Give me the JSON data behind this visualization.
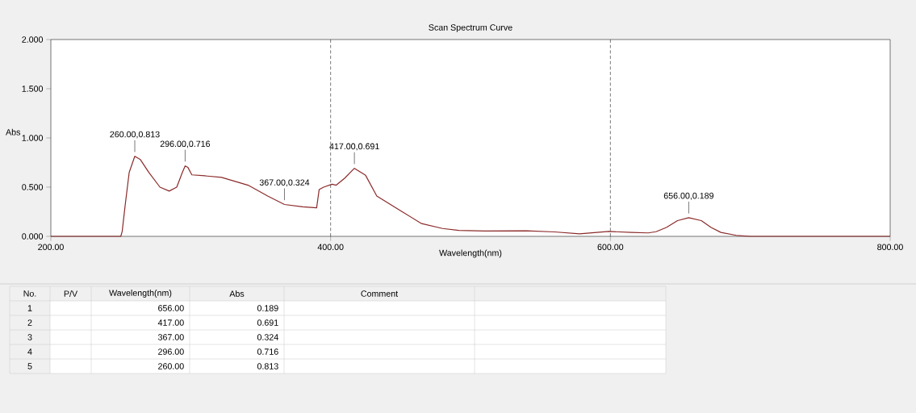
{
  "chart_data": {
    "type": "line",
    "title": "Scan Spectrum Curve",
    "xlabel": "Wavelength(nm)",
    "ylabel": "Abs",
    "x": [
      200,
      250,
      251,
      253,
      256,
      260,
      264,
      270,
      278,
      284.6,
      290,
      294,
      296,
      298,
      300.8,
      310,
      322,
      341,
      355,
      367,
      380,
      390,
      391.8,
      395,
      401,
      404,
      410,
      417,
      425,
      433,
      450,
      465,
      480,
      491.6,
      510,
      540,
      560,
      578,
      599,
      615,
      627,
      632.6,
      640,
      648,
      656,
      665,
      672,
      679,
      690,
      700,
      750,
      800
    ],
    "values": [
      0.0,
      0.0,
      0.05,
      0.3,
      0.65,
      0.813,
      0.78,
      0.65,
      0.5,
      0.46,
      0.5,
      0.65,
      0.716,
      0.7,
      0.625,
      0.615,
      0.6,
      0.52,
      0.41,
      0.324,
      0.3,
      0.29,
      0.475,
      0.5,
      0.53,
      0.52,
      0.59,
      0.691,
      0.62,
      0.41,
      0.26,
      0.13,
      0.08,
      0.06,
      0.055,
      0.057,
      0.045,
      0.025,
      0.05,
      0.04,
      0.035,
      0.047,
      0.09,
      0.16,
      0.189,
      0.16,
      0.09,
      0.04,
      0.01,
      0.0,
      0.0,
      0.0
    ],
    "color": "#8b2a2a",
    "line_style": "solid",
    "marker": "none",
    "grid": false,
    "xlim": [
      200,
      800
    ],
    "ylim": [
      0,
      2
    ],
    "xticks": [
      {
        "value": 200,
        "label": "200.00"
      },
      {
        "value": 400,
        "label": "400.00"
      },
      {
        "value": 600,
        "label": "600.00"
      },
      {
        "value": 800,
        "label": "800.00"
      }
    ],
    "yticks": [
      {
        "value": 0,
        "label": "0.000"
      },
      {
        "value": 0.5,
        "label": "0.500"
      },
      {
        "value": 1,
        "label": "1.000"
      },
      {
        "value": 1.5,
        "label": "1.500"
      },
      {
        "value": 2,
        "label": "2.000"
      }
    ],
    "ref_lines": [
      {
        "axis": "x",
        "value": 400,
        "color": "#000000",
        "line_style": "dashed"
      },
      {
        "axis": "x",
        "value": 600,
        "color": "#000000",
        "line_style": "dashed"
      }
    ],
    "annotations": [
      {
        "text": "260.00,0.813",
        "x": 260,
        "y": 0.813
      },
      {
        "text": "296.00,0.716",
        "x": 296,
        "y": 0.716
      },
      {
        "text": "367.00,0.324",
        "x": 367,
        "y": 0.324
      },
      {
        "text": "417.00,0.691",
        "x": 417,
        "y": 0.691
      },
      {
        "text": "656.00,0.189",
        "x": 656,
        "y": 0.189
      },
      "No.",
      "P/V",
      "Wavelength(nm)",
      "Abs",
      "Comment",
      "1",
      "656.00",
      "0.189",
      "2",
      "417.00",
      "0.691",
      "3",
      "367.00",
      "0.324",
      "4",
      "296.00",
      "0.716",
      "5",
      "260.00",
      "0.813"
    ]
  }
}
